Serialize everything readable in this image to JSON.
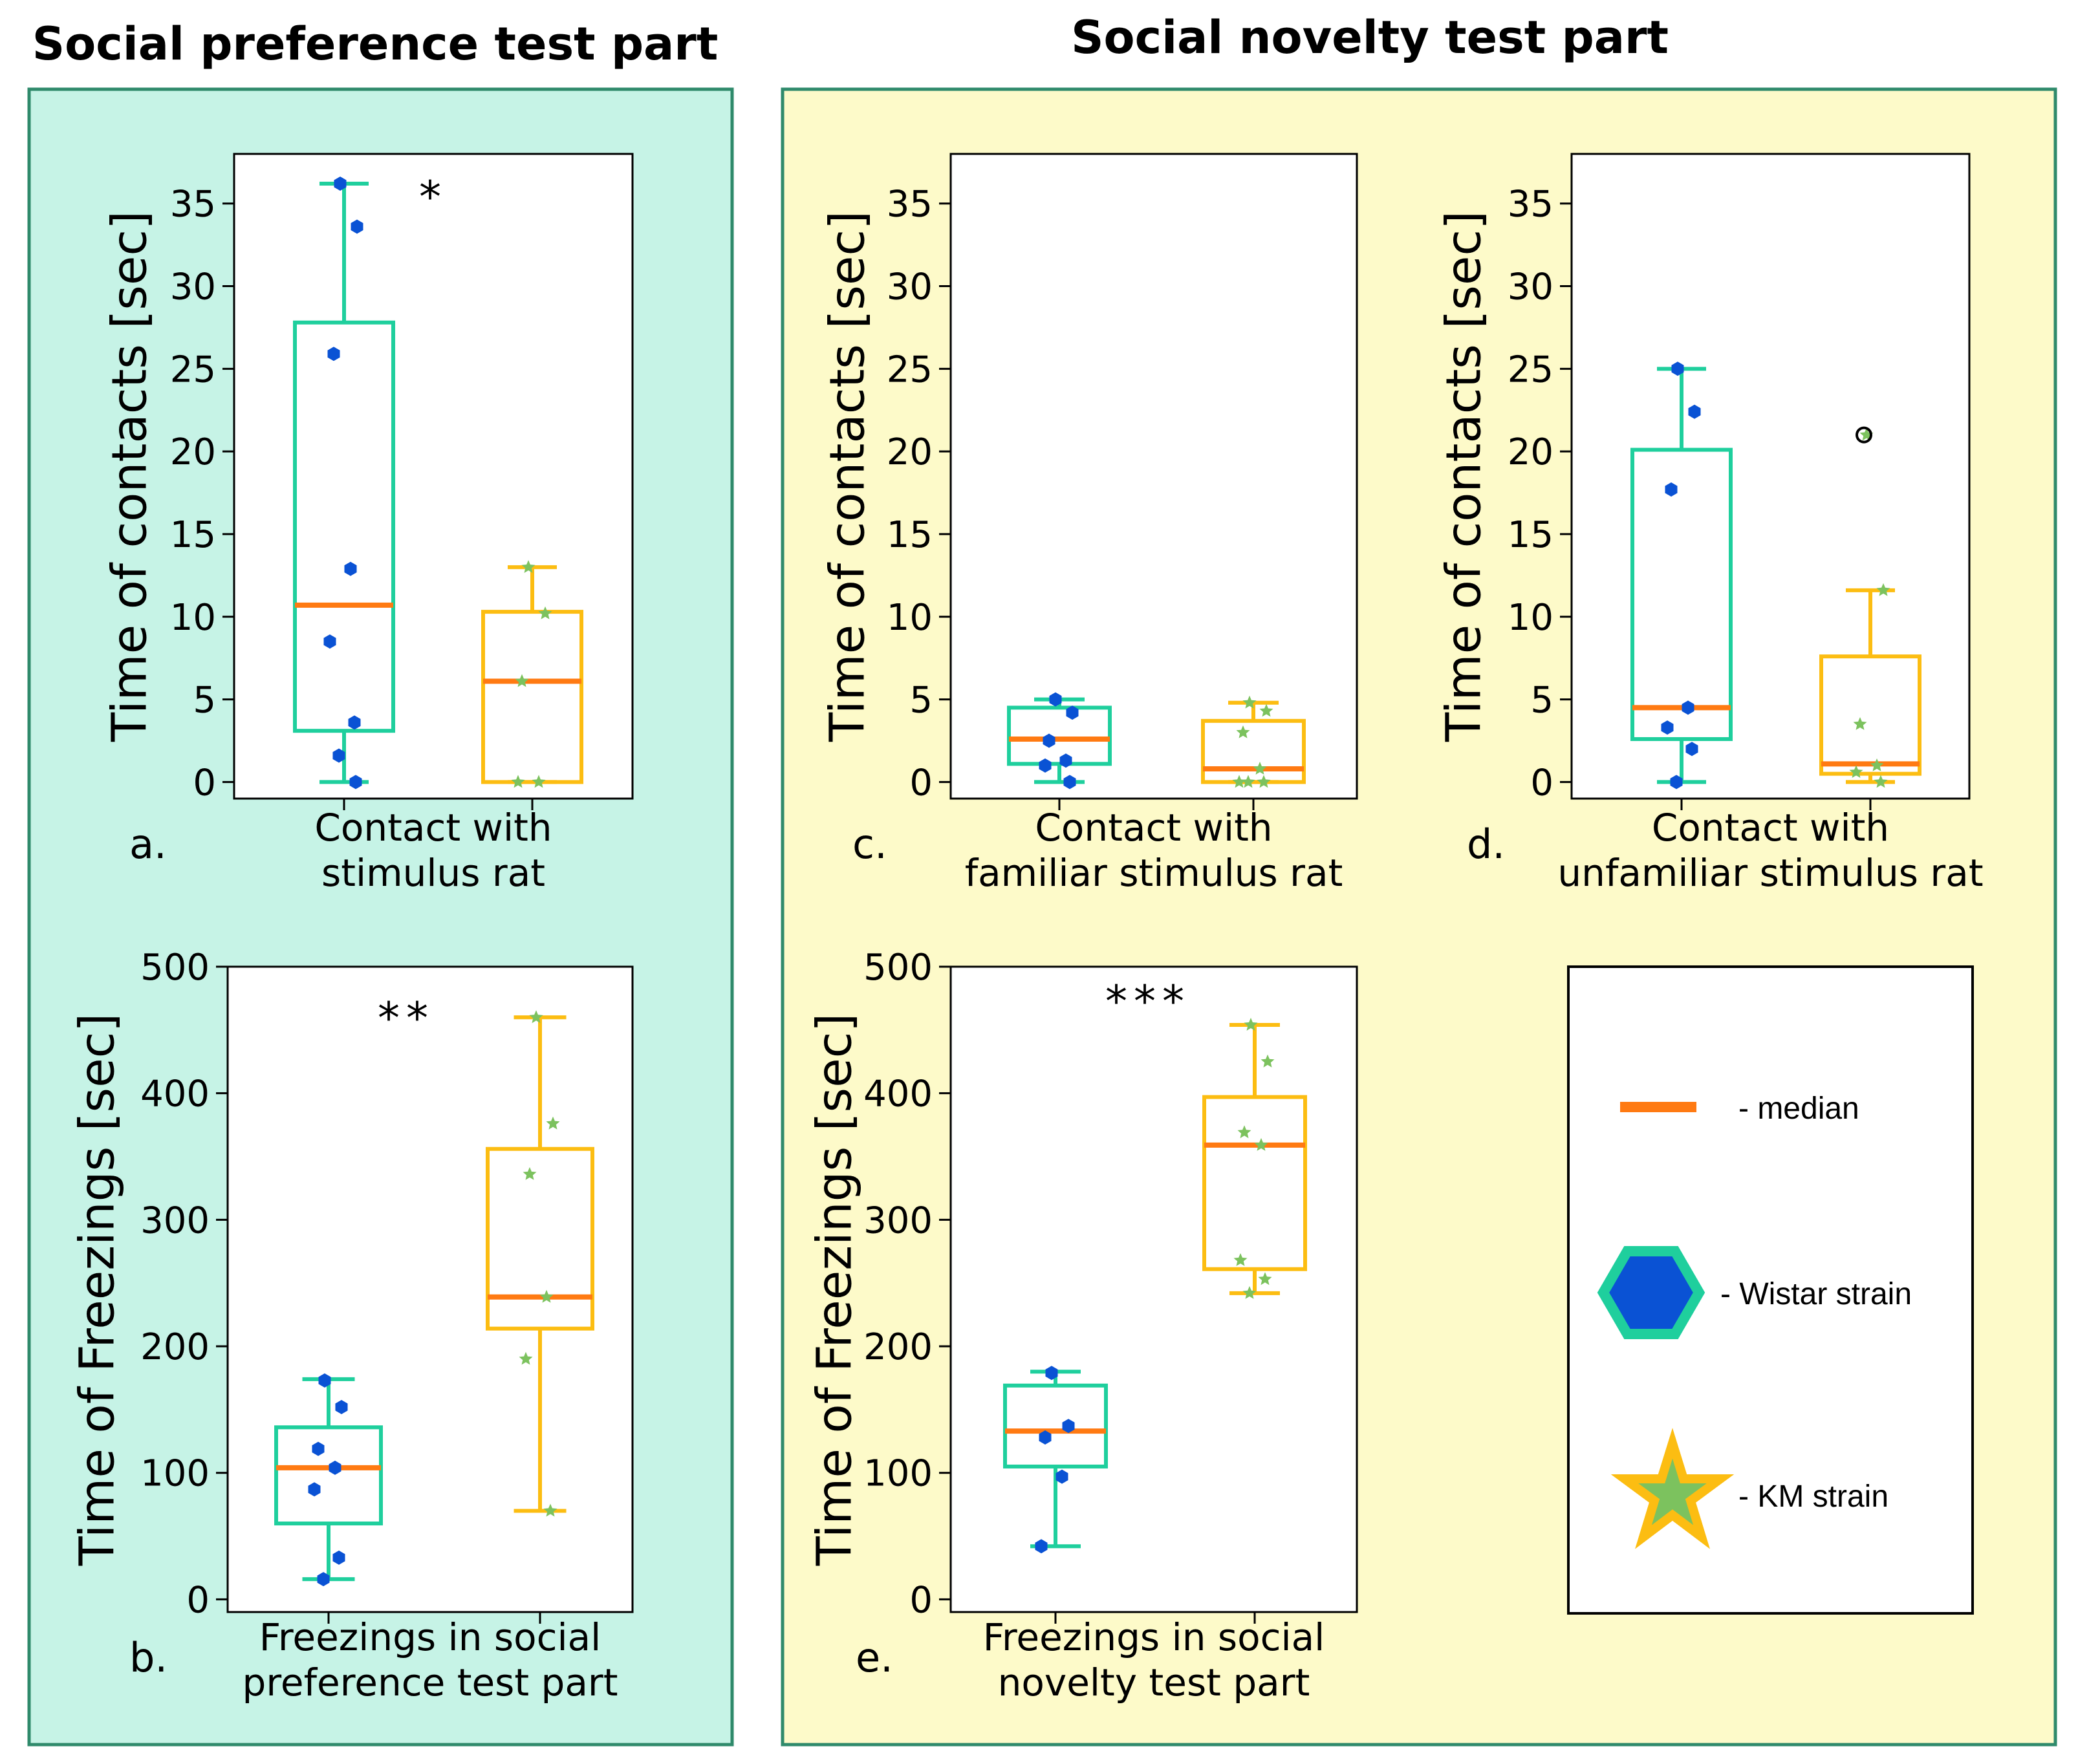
{
  "titles": {
    "left": "Social preference test part",
    "right": "Social novelty test part"
  },
  "colors": {
    "left_bg": "#c6f3e6",
    "right_bg": "#fdfac9",
    "panel_border": "#2f8a6b",
    "wistar_box": "#1fcf9d",
    "km_box": "#fcbd12",
    "median": "#ff7a12",
    "wistar_point": "#0a52d4",
    "km_point": "#7cc25e"
  },
  "legend": {
    "median": "- median",
    "wistar": "- Wistar strain",
    "km": "- KM strain"
  },
  "chart_data": [
    {
      "id": "a",
      "type": "box",
      "panel_letter": "a.",
      "ylabel": "Time of contacts [sec]",
      "xlabel_lines": [
        "Contact with",
        "stimulus rat"
      ],
      "ylim": [
        -1,
        38
      ],
      "yticks": [
        0,
        5,
        10,
        15,
        20,
        25,
        30,
        35
      ],
      "significance": "*",
      "series": [
        {
          "name": "Wistar strain",
          "q1": 3.1,
          "median": 10.7,
          "q3": 27.8,
          "whisker_low": 0,
          "whisker_high": 36.2,
          "points": [
            36.2,
            33.6,
            25.9,
            12.9,
            8.5,
            3.6,
            1.6,
            0
          ],
          "outliers": []
        },
        {
          "name": "KM strain",
          "q1": 0,
          "median": 6.1,
          "q3": 10.3,
          "whisker_low": 0,
          "whisker_high": 13.0,
          "points": [
            13.0,
            10.2,
            6.1,
            0,
            0
          ],
          "outliers": []
        }
      ]
    },
    {
      "id": "c",
      "type": "box",
      "panel_letter": "c.",
      "ylabel": "Time of contacts [sec]",
      "xlabel_lines": [
        "Contact with",
        "familiar stimulus rat"
      ],
      "ylim": [
        -1,
        38
      ],
      "yticks": [
        0,
        5,
        10,
        15,
        20,
        25,
        30,
        35
      ],
      "significance": "",
      "series": [
        {
          "name": "Wistar strain",
          "q1": 1.1,
          "median": 2.6,
          "q3": 4.5,
          "whisker_low": 0,
          "whisker_high": 5.0,
          "points": [
            5.0,
            4.2,
            2.5,
            1.3,
            1.0,
            0
          ],
          "outliers": []
        },
        {
          "name": "KM strain",
          "q1": 0,
          "median": 0.8,
          "q3": 3.7,
          "whisker_low": 0,
          "whisker_high": 4.8,
          "points": [
            4.8,
            4.3,
            3.0,
            0.8,
            0,
            0,
            0
          ],
          "outliers": []
        }
      ]
    },
    {
      "id": "d",
      "type": "box",
      "panel_letter": "d.",
      "ylabel": "Time of contacts [sec]",
      "xlabel_lines": [
        "Contact with",
        "unfamiliar stimulus rat"
      ],
      "ylim": [
        -1,
        38
      ],
      "yticks": [
        0,
        5,
        10,
        15,
        20,
        25,
        30,
        35
      ],
      "significance": "",
      "series": [
        {
          "name": "Wistar strain",
          "q1": 2.6,
          "median": 4.5,
          "q3": 20.1,
          "whisker_low": 0,
          "whisker_high": 25.0,
          "points": [
            25.0,
            22.4,
            17.7,
            4.5,
            3.3,
            2.0,
            0
          ],
          "outliers": []
        },
        {
          "name": "KM strain",
          "q1": 0.5,
          "median": 1.1,
          "q3": 7.6,
          "whisker_low": 0,
          "whisker_high": 11.6,
          "points": [
            21.0,
            11.6,
            3.5,
            1.0,
            0.6,
            0
          ],
          "outliers": [
            21.0
          ]
        }
      ]
    },
    {
      "id": "b",
      "type": "box",
      "panel_letter": "b.",
      "ylabel": "Time of Freezings [sec]",
      "xlabel_lines": [
        "Freezings in social",
        "preference test part"
      ],
      "ylim": [
        -10,
        500
      ],
      "yticks": [
        0,
        100,
        200,
        300,
        400,
        500
      ],
      "significance": "**",
      "series": [
        {
          "name": "Wistar strain",
          "q1": 60,
          "median": 104,
          "q3": 136,
          "whisker_low": 16,
          "whisker_high": 174,
          "points": [
            173,
            152,
            119,
            104,
            87,
            33,
            16
          ],
          "outliers": []
        },
        {
          "name": "KM strain",
          "q1": 214,
          "median": 239,
          "q3": 356,
          "whisker_low": 70,
          "whisker_high": 460,
          "points": [
            460,
            376,
            336,
            239,
            190,
            70
          ],
          "outliers": []
        }
      ]
    },
    {
      "id": "e",
      "type": "box",
      "panel_letter": "e.",
      "ylabel": "Time of Freezings [sec]",
      "xlabel_lines": [
        "Freezings in social",
        "novelty test part"
      ],
      "ylim": [
        -10,
        500
      ],
      "yticks": [
        0,
        100,
        200,
        300,
        400,
        500
      ],
      "significance": "***",
      "series": [
        {
          "name": "Wistar strain",
          "q1": 105,
          "median": 133,
          "q3": 169,
          "whisker_low": 42,
          "whisker_high": 180,
          "points": [
            179,
            137,
            128,
            97,
            42
          ],
          "outliers": []
        },
        {
          "name": "KM strain",
          "q1": 261,
          "median": 359,
          "q3": 397,
          "whisker_low": 242,
          "whisker_high": 454,
          "points": [
            454,
            425,
            369,
            359,
            268,
            253,
            242
          ],
          "outliers": []
        }
      ]
    }
  ]
}
